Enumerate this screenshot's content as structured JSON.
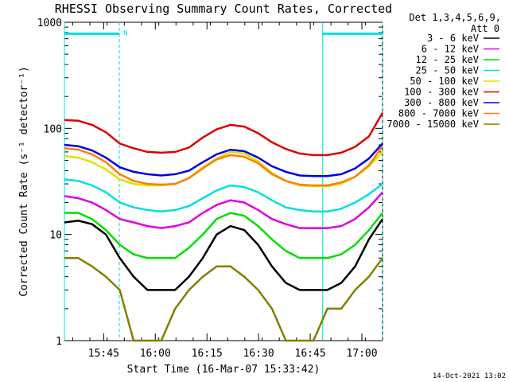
{
  "chart_data": {
    "type": "line",
    "title": "RHESSI Observing Summary Count Rates, Corrected",
    "xlabel": "Start Time (16-Mar-07 15:33:42)",
    "ylabel": "Corrected Count Rate (s⁻¹ detector⁻¹)",
    "y_scale": "log",
    "ylim": [
      1,
      1000
    ],
    "y_ticks": [
      {
        "value": 1,
        "label": "1"
      },
      {
        "value": 10,
        "label": "10"
      },
      {
        "value": 100,
        "label": "100"
      },
      {
        "value": 1000,
        "label": "1000"
      }
    ],
    "xlim_minutes": [
      15.56,
      17.1
    ],
    "x_ticks": [
      {
        "t": 15.75,
        "label": "15:45"
      },
      {
        "t": 16.0,
        "label": "16:00"
      },
      {
        "t": 16.25,
        "label": "16:15"
      },
      {
        "t": 16.5,
        "label": "16:30"
      },
      {
        "t": 16.75,
        "label": "16:45"
      },
      {
        "t": 17.0,
        "label": "17:00"
      }
    ],
    "legend": {
      "header": "Det 1,3,4,5,6,9,",
      "subheader": "Att 0",
      "position": "top-right"
    },
    "series": [
      {
        "name": "3 - 6 keV",
        "color": "#000000",
        "values": [
          13,
          13.5,
          12.5,
          10,
          6,
          4,
          3,
          3,
          3,
          4,
          6,
          10,
          12,
          11,
          8,
          5,
          3.5,
          3,
          3,
          3,
          3.5,
          5,
          9,
          14
        ]
      },
      {
        "name": "6 - 12 keV",
        "color": "#e000e0",
        "values": [
          23,
          22,
          20,
          17,
          14,
          13,
          12,
          11.5,
          12,
          13,
          16,
          19,
          21,
          20,
          17,
          14,
          12.5,
          11.5,
          11.5,
          11.5,
          12,
          14,
          18,
          25
        ]
      },
      {
        "name": "12 - 25 keV",
        "color": "#00e000",
        "values": [
          16,
          16,
          14,
          11,
          8,
          6.5,
          6,
          6,
          6,
          7.5,
          10,
          14,
          16,
          15,
          12,
          9,
          7,
          6,
          6,
          6,
          6.5,
          8,
          11,
          16
        ]
      },
      {
        "name": "25 - 50 keV",
        "color": "#00e0e0",
        "values": [
          33,
          32,
          29,
          25,
          20,
          18,
          17,
          16.5,
          17,
          18.5,
          22,
          26,
          29,
          28,
          25,
          21,
          18,
          17,
          16.5,
          16.5,
          17.5,
          20,
          24,
          30
        ]
      },
      {
        "name": "50 - 100 keV",
        "color": "#e0e000",
        "values": [
          55,
          53,
          48,
          41,
          33,
          30,
          29,
          29,
          30,
          34,
          43,
          52,
          60,
          58,
          49,
          38,
          32,
          29,
          28.5,
          28.5,
          30,
          35,
          44,
          60
        ]
      },
      {
        "name": "100 - 300 keV",
        "color": "#e00000",
        "values": [
          120,
          118,
          108,
          92,
          72,
          65,
          60,
          59,
          60,
          66,
          82,
          98,
          108,
          104,
          90,
          74,
          64,
          58,
          56,
          56,
          59,
          67,
          84,
          140
        ]
      },
      {
        "name": "300 - 800 keV",
        "color": "#0000e0",
        "values": [
          70,
          68,
          62,
          53,
          43,
          39,
          37,
          36,
          37,
          40,
          48,
          57,
          63,
          61,
          53,
          44,
          39,
          36,
          35.5,
          35.5,
          37,
          42,
          52,
          72
        ]
      },
      {
        "name": "800 - 7000 keV",
        "color": "#ff8000",
        "values": [
          65,
          63,
          57,
          48,
          37,
          32,
          30,
          29.5,
          30,
          34,
          42,
          51,
          56,
          54,
          47,
          37,
          32,
          29.5,
          29,
          29,
          31,
          35,
          45,
          68
        ]
      },
      {
        "name": "7000 - 15000 keV",
        "color": "#808000",
        "values": [
          6,
          6,
          5,
          4,
          3,
          1,
          1,
          1,
          2,
          3,
          4,
          5,
          5,
          4,
          3,
          2,
          1,
          1,
          1,
          2,
          2,
          3,
          4,
          6
        ]
      }
    ],
    "series_x": [
      15.56,
      15.627,
      15.694,
      15.761,
      15.828,
      15.895,
      15.962,
      16.029,
      16.096,
      16.163,
      16.23,
      16.297,
      16.364,
      16.431,
      16.498,
      16.565,
      16.632,
      16.699,
      16.766,
      16.833,
      16.9,
      16.967,
      17.034,
      17.1
    ],
    "markers": {
      "label": "N",
      "vertical_lines": [
        15.56,
        15.826,
        16.81,
        17.1
      ],
      "bar_value": 780,
      "bar_segments": [
        [
          15.56,
          15.826
        ],
        [
          16.81,
          17.1
        ]
      ],
      "color": "#00e0e0"
    },
    "grid": false
  },
  "footer": {
    "timestamp": "14-Oct-2021 13:02"
  }
}
